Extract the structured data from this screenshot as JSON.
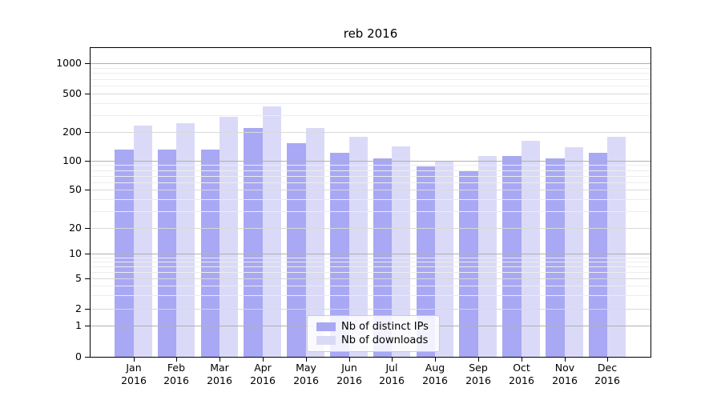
{
  "title": "reb 2016",
  "colors": {
    "distinct_ips": "#a8a8f4",
    "downloads": "#dadaf8",
    "grid_decade": "#b0b0b0",
    "grid_sub": "#d9d9d9",
    "grid_minor": "#ececec",
    "axis": "#000000",
    "legend_border": "#cccccc"
  },
  "legend": {
    "items": [
      {
        "label": "Nb of distinct IPs"
      },
      {
        "label": "Nb of downloads"
      }
    ]
  },
  "chart_data": {
    "type": "bar",
    "title": "reb 2016",
    "xlabel": "",
    "ylabel": "",
    "yscale": "symlog",
    "ylim": [
      0,
      1500
    ],
    "grid": "both",
    "legend_position": "lower-center",
    "yticks": [
      0,
      1,
      2,
      5,
      10,
      20,
      50,
      100,
      200,
      500,
      1000
    ],
    "minor_gridlines": [
      3,
      4,
      6,
      7,
      8,
      9,
      30,
      40,
      60,
      70,
      80,
      90,
      300,
      400,
      600,
      700,
      800,
      900
    ],
    "categories": [
      {
        "month": "Jan",
        "year": "2016"
      },
      {
        "month": "Feb",
        "year": "2016"
      },
      {
        "month": "Mar",
        "year": "2016"
      },
      {
        "month": "Apr",
        "year": "2016"
      },
      {
        "month": "May",
        "year": "2016"
      },
      {
        "month": "Jun",
        "year": "2016"
      },
      {
        "month": "Jul",
        "year": "2016"
      },
      {
        "month": "Aug",
        "year": "2016"
      },
      {
        "month": "Sep",
        "year": "2016"
      },
      {
        "month": "Oct",
        "year": "2016"
      },
      {
        "month": "Nov",
        "year": "2016"
      },
      {
        "month": "Dec",
        "year": "2016"
      }
    ],
    "series": [
      {
        "name": "Nb of distinct IPs",
        "color": "#a8a8f4",
        "values": [
          130,
          131,
          132,
          220,
          154,
          122,
          106,
          87,
          78,
          112,
          106,
          122
        ]
      },
      {
        "name": "Nb of downloads",
        "color": "#dadaf8",
        "values": [
          233,
          245,
          290,
          370,
          220,
          178,
          142,
          100,
          113,
          161,
          140,
          177
        ]
      }
    ]
  }
}
